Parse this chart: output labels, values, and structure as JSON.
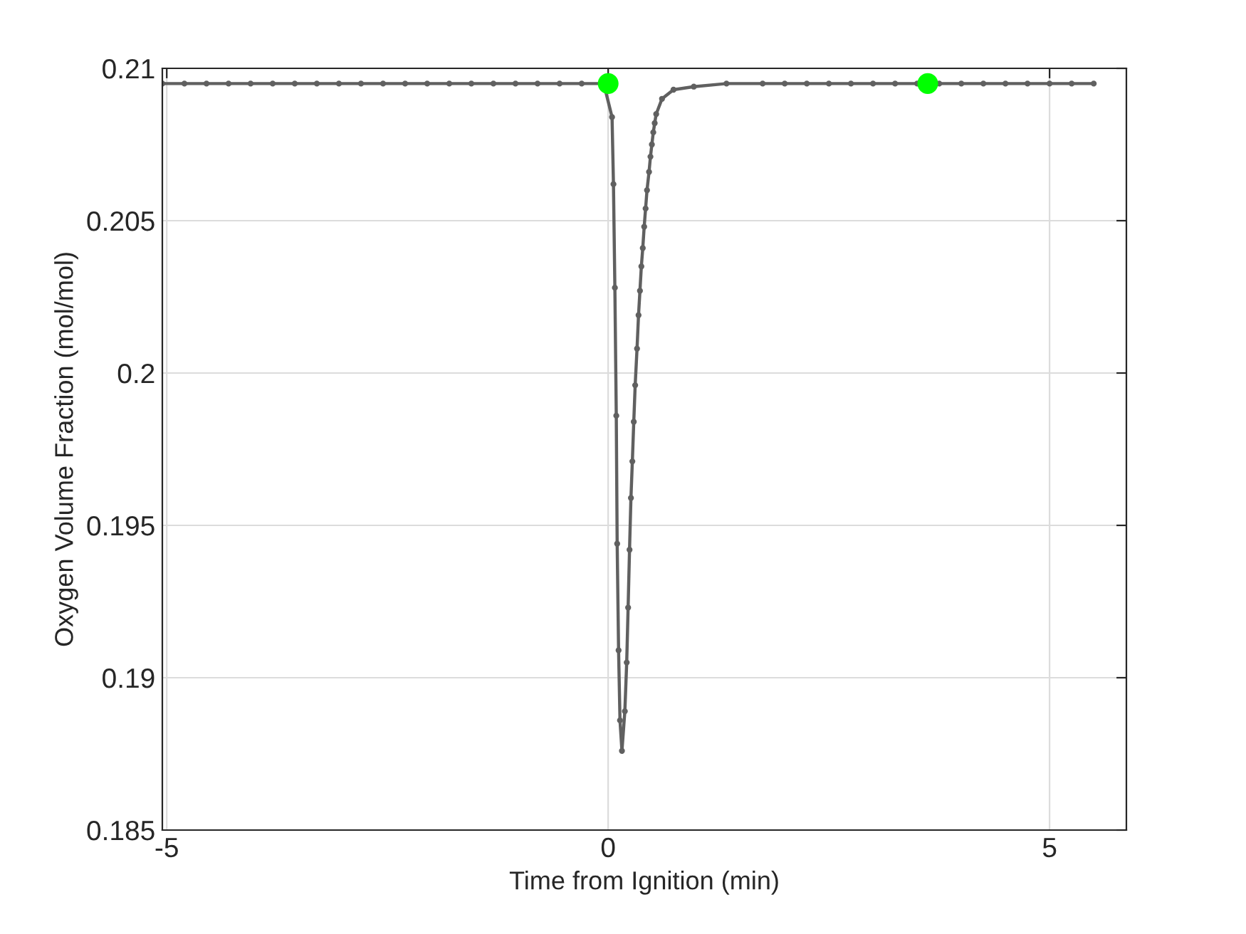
{
  "chart_data": {
    "type": "line",
    "xlabel": "Time from Ignition (min)",
    "ylabel": "Oxygen Volume Fraction (mol/mol)",
    "xlim": [
      -5.05,
      5.87
    ],
    "xticks": [
      -5,
      0,
      5
    ],
    "ylim": [
      0.185,
      0.21
    ],
    "yticks": [
      0.185,
      0.19,
      0.195,
      0.2,
      0.205,
      0.21
    ],
    "grid": true,
    "marker": "circle",
    "line_style": "solid",
    "series": [
      {
        "color": "#606060",
        "x": [
          -5.05,
          -4.8,
          -4.55,
          -4.3,
          -4.05,
          -3.8,
          -3.55,
          -3.3,
          -3.05,
          -2.8,
          -2.55,
          -2.3,
          -2.05,
          -1.8,
          -1.55,
          -1.3,
          -1.05,
          -0.8,
          -0.55,
          -0.3,
          -0.05,
          0.044,
          0.06,
          0.076,
          0.092,
          0.102,
          0.118,
          0.134,
          0.156,
          0.189,
          0.21,
          0.226,
          0.242,
          0.258,
          0.274,
          0.29,
          0.306,
          0.327,
          0.344,
          0.36,
          0.376,
          0.392,
          0.408,
          0.424,
          0.44,
          0.463,
          0.479,
          0.495,
          0.511,
          0.527,
          0.544,
          0.61,
          0.74,
          0.97,
          1.34,
          1.75,
          2.0,
          2.25,
          2.5,
          2.75,
          3.0,
          3.25,
          3.5,
          3.75,
          4.0,
          4.25,
          4.5,
          4.75,
          5.0,
          5.25,
          5.5
        ],
        "values": [
          0.2095,
          0.2095,
          0.2095,
          0.2095,
          0.2095,
          0.2095,
          0.2095,
          0.2095,
          0.2095,
          0.2095,
          0.2095,
          0.2095,
          0.2095,
          0.2095,
          0.2095,
          0.2095,
          0.2095,
          0.2095,
          0.2095,
          0.2095,
          0.2095,
          0.2084,
          0.2062,
          0.2028,
          0.1986,
          0.1944,
          0.1909,
          0.1886,
          0.1876,
          0.1889,
          0.1905,
          0.1923,
          0.1942,
          0.1959,
          0.1971,
          0.1984,
          0.1996,
          0.2008,
          0.2019,
          0.2027,
          0.2035,
          0.2041,
          0.2048,
          0.2054,
          0.206,
          0.2066,
          0.2071,
          0.2075,
          0.2079,
          0.2082,
          0.2085,
          0.209,
          0.2093,
          0.2094,
          0.2095,
          0.2095,
          0.2095,
          0.2095,
          0.2095,
          0.2095,
          0.2095,
          0.2095,
          0.2095,
          0.2095,
          0.2095,
          0.2095,
          0.2095,
          0.2095,
          0.2095,
          0.2095,
          0.2095
        ]
      },
      {
        "type": "scatter",
        "color": "#00ff00",
        "x": [
          0,
          3.62
        ],
        "values": [
          0.2095,
          0.2095
        ]
      }
    ]
  }
}
